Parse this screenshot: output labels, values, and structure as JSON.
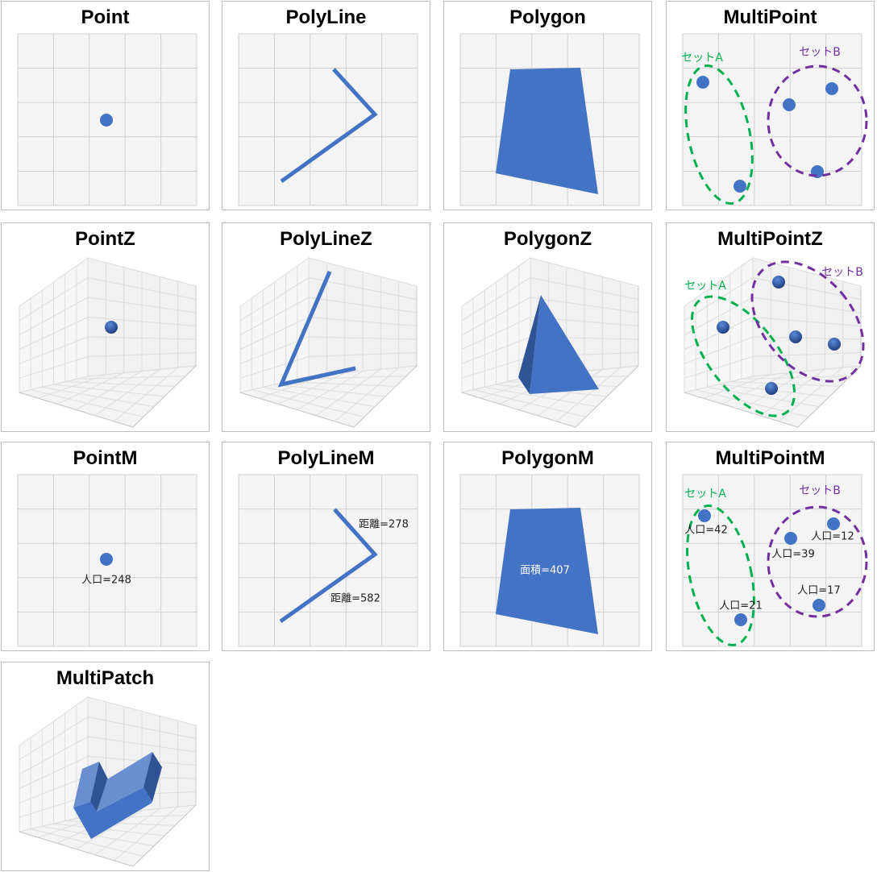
{
  "colors": {
    "shape": "#4472c4",
    "shape_dark": "#2f5496",
    "shape_light": "#6a8fd0",
    "set_a": "#00b050",
    "set_b": "#7030a0",
    "grid_bg": "#f4f4f4",
    "grid_line": "#d0d0d0"
  },
  "panels": [
    {
      "title": "Point",
      "kind": "2d"
    },
    {
      "title": "PolyLine",
      "kind": "2d"
    },
    {
      "title": "Polygon",
      "kind": "2d"
    },
    {
      "title": "MultiPoint",
      "kind": "2d",
      "set_a": "セットA",
      "set_b": "セットB"
    },
    {
      "title": "PointZ",
      "kind": "3d"
    },
    {
      "title": "PolyLineZ",
      "kind": "3d"
    },
    {
      "title": "PolygonZ",
      "kind": "3d"
    },
    {
      "title": "MultiPointZ",
      "kind": "3d",
      "set_a": "セットA",
      "set_b": "セットB"
    },
    {
      "title": "PointM",
      "kind": "2d",
      "labels": [
        "人口=248"
      ]
    },
    {
      "title": "PolyLineM",
      "kind": "2d",
      "labels": [
        "距離=278",
        "距離=582"
      ]
    },
    {
      "title": "PolygonM",
      "kind": "2d",
      "labels": [
        "面積=407"
      ]
    },
    {
      "title": "MultiPointM",
      "kind": "2d",
      "set_a": "セットA",
      "set_b": "セットB",
      "labels": [
        "人口=42",
        "人口=21",
        "人口=39",
        "人口=12",
        "人口=17"
      ]
    },
    {
      "title": "MultiPatch",
      "kind": "3d"
    }
  ]
}
